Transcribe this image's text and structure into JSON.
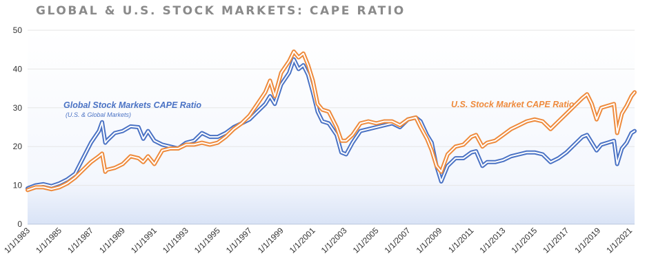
{
  "chart_data": {
    "type": "line",
    "title": "GLOBAL & U.S. STOCK MARKETS: CAPE RATIO",
    "xlabel": "",
    "ylabel": "",
    "ylim": [
      0,
      50
    ],
    "yticks": [
      0,
      10,
      20,
      30,
      40,
      50
    ],
    "xlim": [
      1983,
      2021.3
    ],
    "xticks": [
      {
        "label": "1/1/1983",
        "value": 1983
      },
      {
        "label": "1/1/1985",
        "value": 1985
      },
      {
        "label": "1/1/1987",
        "value": 1987
      },
      {
        "label": "1/1/1989",
        "value": 1989
      },
      {
        "label": "1/1/1991",
        "value": 1991
      },
      {
        "label": "1/1/1993",
        "value": 1993
      },
      {
        "label": "1/1/1995",
        "value": 1995
      },
      {
        "label": "1/1/1997",
        "value": 1997
      },
      {
        "label": "1/1/1999",
        "value": 1999
      },
      {
        "label": "1/1/2001",
        "value": 2001
      },
      {
        "label": "1/1/2003",
        "value": 2003
      },
      {
        "label": "1/1/2005",
        "value": 2005
      },
      {
        "label": "1/1/2007",
        "value": 2007
      },
      {
        "label": "1/1/2009",
        "value": 2009
      },
      {
        "label": "1/1/2011",
        "value": 2011
      },
      {
        "label": "1/1/2013",
        "value": 2013
      },
      {
        "label": "1/1/2015",
        "value": 2015
      },
      {
        "label": "1/1/2017",
        "value": 2017
      },
      {
        "label": "1/1/2019",
        "value": 2019
      },
      {
        "label": "1/1/2021",
        "value": 2021
      }
    ],
    "grid": true,
    "legend": "none",
    "annotations": {
      "global_label": "Global Stock Markets CAPE Ratio",
      "global_sublabel": "(U.S. & Global Markets)",
      "us_label": "U.S. Stock Market CAPE Ratio"
    },
    "series": [
      {
        "name": "Global Stock Markets CAPE Ratio",
        "color": "#4a72c4",
        "points": [
          [
            1983,
            9.2
          ],
          [
            1983.5,
            10
          ],
          [
            1984,
            10.3
          ],
          [
            1984.5,
            9.8
          ],
          [
            1985,
            10.5
          ],
          [
            1985.5,
            11.5
          ],
          [
            1986,
            13
          ],
          [
            1986.5,
            17
          ],
          [
            1987,
            21
          ],
          [
            1987.5,
            24
          ],
          [
            1987.7,
            26.3
          ],
          [
            1987.9,
            21
          ],
          [
            1988,
            21.5
          ],
          [
            1988.5,
            23.5
          ],
          [
            1989,
            24
          ],
          [
            1989.5,
            25.2
          ],
          [
            1990,
            25
          ],
          [
            1990.3,
            22
          ],
          [
            1990.6,
            24
          ],
          [
            1991,
            21.5
          ],
          [
            1991.5,
            20.5
          ],
          [
            1992,
            20
          ],
          [
            1992.5,
            19.5
          ],
          [
            1993,
            21
          ],
          [
            1993.5,
            21.5
          ],
          [
            1994,
            23.5
          ],
          [
            1994.5,
            22.5
          ],
          [
            1995,
            22.5
          ],
          [
            1995.5,
            23.5
          ],
          [
            1996,
            25
          ],
          [
            1996.5,
            26
          ],
          [
            1997,
            27
          ],
          [
            1997.5,
            29
          ],
          [
            1998,
            31
          ],
          [
            1998.3,
            33
          ],
          [
            1998.6,
            31
          ],
          [
            1999,
            36
          ],
          [
            1999.5,
            39
          ],
          [
            1999.8,
            42.5
          ],
          [
            2000.1,
            40
          ],
          [
            2000.4,
            41
          ],
          [
            2000.7,
            38.5
          ],
          [
            2001,
            34
          ],
          [
            2001.3,
            29
          ],
          [
            2001.6,
            26.5
          ],
          [
            2002,
            26
          ],
          [
            2002.5,
            23
          ],
          [
            2002.8,
            18.5
          ],
          [
            2003.1,
            18
          ],
          [
            2003.5,
            21
          ],
          [
            2004,
            24
          ],
          [
            2004.5,
            24.5
          ],
          [
            2005,
            25
          ],
          [
            2005.5,
            25.5
          ],
          [
            2006,
            26
          ],
          [
            2006.5,
            25
          ],
          [
            2007,
            27
          ],
          [
            2007.5,
            27.5
          ],
          [
            2007.8,
            26.5
          ],
          [
            2008.2,
            23
          ],
          [
            2008.5,
            21
          ],
          [
            2008.8,
            15
          ],
          [
            2009.1,
            11
          ],
          [
            2009.5,
            15
          ],
          [
            2010,
            17
          ],
          [
            2010.5,
            17
          ],
          [
            2011,
            18.5
          ],
          [
            2011.3,
            18.8
          ],
          [
            2011.7,
            15
          ],
          [
            2012,
            16
          ],
          [
            2012.5,
            16
          ],
          [
            2013,
            16.5
          ],
          [
            2013.5,
            17.5
          ],
          [
            2014,
            18
          ],
          [
            2014.5,
            18.5
          ],
          [
            2015,
            18.5
          ],
          [
            2015.5,
            18
          ],
          [
            2016,
            16
          ],
          [
            2016.5,
            17
          ],
          [
            2017,
            18.5
          ],
          [
            2017.5,
            20.5
          ],
          [
            2018,
            22.5
          ],
          [
            2018.3,
            23
          ],
          [
            2018.6,
            21
          ],
          [
            2018.9,
            19
          ],
          [
            2019.2,
            20.5
          ],
          [
            2019.6,
            21
          ],
          [
            2020,
            21.5
          ],
          [
            2020.2,
            15.5
          ],
          [
            2020.5,
            19.5
          ],
          [
            2020.8,
            21
          ],
          [
            2021.1,
            23.5
          ],
          [
            2021.3,
            24
          ]
        ]
      },
      {
        "name": "U.S. Stock Market CAPE Ratio",
        "color": "#ee8a3c",
        "points": [
          [
            1983,
            8.8
          ],
          [
            1983.5,
            9.5
          ],
          [
            1984,
            9.5
          ],
          [
            1984.5,
            9
          ],
          [
            1985,
            9.5
          ],
          [
            1985.5,
            10.5
          ],
          [
            1986,
            12
          ],
          [
            1986.5,
            14
          ],
          [
            1987,
            16
          ],
          [
            1987.5,
            17.5
          ],
          [
            1987.7,
            18.2
          ],
          [
            1987.9,
            13.5
          ],
          [
            1988,
            14
          ],
          [
            1988.5,
            14.5
          ],
          [
            1989,
            15.5
          ],
          [
            1989.5,
            17.5
          ],
          [
            1990,
            17
          ],
          [
            1990.3,
            16
          ],
          [
            1990.6,
            17.5
          ],
          [
            1991,
            15.5
          ],
          [
            1991.5,
            19
          ],
          [
            1992,
            19.5
          ],
          [
            1992.5,
            19.5
          ],
          [
            1993,
            20.5
          ],
          [
            1993.5,
            20.5
          ],
          [
            1994,
            21
          ],
          [
            1994.5,
            20.5
          ],
          [
            1995,
            21
          ],
          [
            1995.5,
            22.5
          ],
          [
            1996,
            24.5
          ],
          [
            1996.5,
            26
          ],
          [
            1997,
            28
          ],
          [
            1997.5,
            31
          ],
          [
            1998,
            34
          ],
          [
            1998.3,
            37
          ],
          [
            1998.6,
            33
          ],
          [
            1999,
            39
          ],
          [
            1999.5,
            42
          ],
          [
            1999.8,
            44.5
          ],
          [
            2000.1,
            43
          ],
          [
            2000.4,
            44
          ],
          [
            2000.7,
            41
          ],
          [
            2001,
            37
          ],
          [
            2001.3,
            31
          ],
          [
            2001.6,
            29.5
          ],
          [
            2002,
            29
          ],
          [
            2002.5,
            25
          ],
          [
            2002.8,
            21.5
          ],
          [
            2003.1,
            21.5
          ],
          [
            2003.5,
            23
          ],
          [
            2004,
            26
          ],
          [
            2004.5,
            26.5
          ],
          [
            2005,
            26
          ],
          [
            2005.5,
            26.5
          ],
          [
            2006,
            26.5
          ],
          [
            2006.5,
            25.5
          ],
          [
            2007,
            27
          ],
          [
            2007.5,
            27.5
          ],
          [
            2007.8,
            25
          ],
          [
            2008.2,
            22
          ],
          [
            2008.5,
            19
          ],
          [
            2008.8,
            15
          ],
          [
            2009.1,
            13.5
          ],
          [
            2009.5,
            18
          ],
          [
            2010,
            20
          ],
          [
            2010.5,
            20.5
          ],
          [
            2011,
            22.5
          ],
          [
            2011.3,
            23
          ],
          [
            2011.7,
            20
          ],
          [
            2012,
            21
          ],
          [
            2012.5,
            21.5
          ],
          [
            2013,
            23
          ],
          [
            2013.5,
            24.5
          ],
          [
            2014,
            25.5
          ],
          [
            2014.5,
            26.5
          ],
          [
            2015,
            27
          ],
          [
            2015.5,
            26.5
          ],
          [
            2016,
            24.5
          ],
          [
            2016.5,
            26.5
          ],
          [
            2017,
            28.5
          ],
          [
            2017.5,
            30.5
          ],
          [
            2018,
            32.5
          ],
          [
            2018.3,
            33.5
          ],
          [
            2018.6,
            31
          ],
          [
            2018.9,
            27
          ],
          [
            2019.2,
            30
          ],
          [
            2019.6,
            30.5
          ],
          [
            2020,
            31
          ],
          [
            2020.2,
            23.5
          ],
          [
            2020.5,
            28.5
          ],
          [
            2020.8,
            30.5
          ],
          [
            2021.1,
            33
          ],
          [
            2021.3,
            34
          ]
        ]
      }
    ]
  }
}
